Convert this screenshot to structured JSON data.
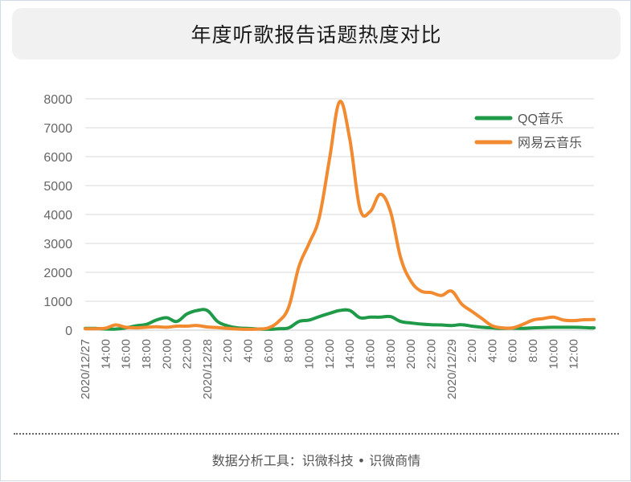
{
  "title": "年度听歌报告话题热度对比",
  "footer": "数据分析工具：识微科技 • 识微商情",
  "colors": {
    "qq": "#1f9a48",
    "netease": "#f28a30",
    "grid": "#d9d9d9",
    "axis": "#666666"
  },
  "chart_data": {
    "type": "line",
    "ylim": [
      0,
      8000
    ],
    "yticks": [
      "0",
      "1000",
      "2000",
      "3000",
      "4000",
      "5000",
      "6000",
      "7000",
      "8000"
    ],
    "xtick_labels": [
      "2020/12/27",
      "14:00",
      "16:00",
      "18:00",
      "20:00",
      "22:00",
      "2020/12/28",
      "2:00",
      "4:00",
      "6:00",
      "8:00",
      "10:00",
      "12:00",
      "14:00",
      "16:00",
      "18:00",
      "20:00",
      "22:00",
      "2020/12/29",
      "2:00",
      "4:00",
      "6:00",
      "8:00",
      "10:00",
      "12:00"
    ],
    "legend_position": "top-right",
    "grid": true,
    "series": [
      {
        "name": "QQ音乐",
        "color": "#1f9a48",
        "points": [
          [
            0,
            60
          ],
          [
            1,
            60
          ],
          [
            2,
            40
          ],
          [
            3,
            40
          ],
          [
            4,
            80
          ],
          [
            5,
            150
          ],
          [
            6,
            200
          ],
          [
            7,
            350
          ],
          [
            8,
            430
          ],
          [
            9,
            300
          ],
          [
            10,
            560
          ],
          [
            11,
            680
          ],
          [
            12,
            680
          ],
          [
            13,
            300
          ],
          [
            14,
            150
          ],
          [
            15,
            80
          ],
          [
            16,
            60
          ],
          [
            17,
            40
          ],
          [
            18,
            30
          ],
          [
            19,
            50
          ],
          [
            20,
            80
          ],
          [
            21,
            300
          ],
          [
            22,
            350
          ],
          [
            23,
            470
          ],
          [
            24,
            580
          ],
          [
            25,
            680
          ],
          [
            26,
            680
          ],
          [
            27,
            430
          ],
          [
            28,
            450
          ],
          [
            29,
            450
          ],
          [
            30,
            470
          ],
          [
            31,
            300
          ],
          [
            32,
            250
          ],
          [
            33,
            210
          ],
          [
            34,
            190
          ],
          [
            35,
            180
          ],
          [
            36,
            160
          ],
          [
            37,
            190
          ],
          [
            38,
            140
          ],
          [
            39,
            100
          ],
          [
            40,
            80
          ],
          [
            41,
            60
          ],
          [
            42,
            70
          ],
          [
            43,
            60
          ],
          [
            44,
            80
          ],
          [
            45,
            90
          ],
          [
            46,
            100
          ],
          [
            47,
            100
          ],
          [
            48,
            100
          ],
          [
            49,
            90
          ],
          [
            50,
            80
          ]
        ]
      },
      {
        "name": "网易云音乐",
        "color": "#f28a30",
        "points": [
          [
            0,
            50
          ],
          [
            1,
            50
          ],
          [
            2,
            70
          ],
          [
            3,
            180
          ],
          [
            4,
            100
          ],
          [
            5,
            80
          ],
          [
            6,
            100
          ],
          [
            7,
            120
          ],
          [
            8,
            100
          ],
          [
            9,
            140
          ],
          [
            10,
            140
          ],
          [
            11,
            160
          ],
          [
            12,
            110
          ],
          [
            13,
            90
          ],
          [
            14,
            60
          ],
          [
            15,
            40
          ],
          [
            16,
            30
          ],
          [
            17,
            40
          ],
          [
            18,
            80
          ],
          [
            19,
            300
          ],
          [
            20,
            800
          ],
          [
            21,
            2200
          ],
          [
            22,
            3000
          ],
          [
            23,
            3900
          ],
          [
            24,
            5900
          ],
          [
            25,
            7900
          ],
          [
            26,
            6600
          ],
          [
            27,
            4200
          ],
          [
            28,
            4100
          ],
          [
            29,
            4700
          ],
          [
            30,
            4100
          ],
          [
            31,
            2500
          ],
          [
            32,
            1700
          ],
          [
            33,
            1350
          ],
          [
            34,
            1300
          ],
          [
            35,
            1200
          ],
          [
            36,
            1350
          ],
          [
            37,
            900
          ],
          [
            38,
            650
          ],
          [
            39,
            400
          ],
          [
            40,
            150
          ],
          [
            41,
            80
          ],
          [
            42,
            80
          ],
          [
            43,
            200
          ],
          [
            44,
            350
          ],
          [
            45,
            400
          ],
          [
            46,
            450
          ],
          [
            47,
            350
          ],
          [
            48,
            330
          ],
          [
            49,
            360
          ],
          [
            50,
            370
          ]
        ]
      }
    ]
  }
}
